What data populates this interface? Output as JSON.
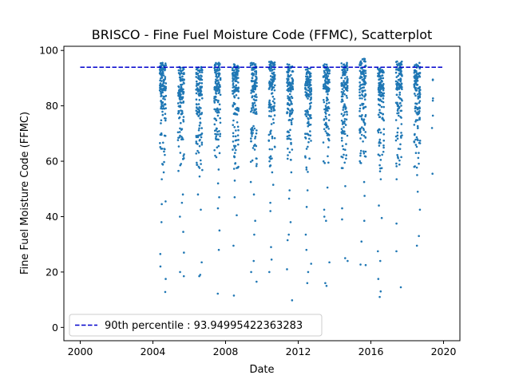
{
  "chart_data": {
    "type": "scatter",
    "title": "BRISCO - Fine Fuel Moisture Code (FFMC), Scatterplot",
    "xlabel": "Date",
    "ylabel": "Fine Fuel Moisture Code (FFMC)",
    "xlim": [
      1999.1,
      2020.9
    ],
    "ylim": [
      -4.8,
      101.5
    ],
    "xticks": [
      2000,
      2004,
      2008,
      2012,
      2016,
      2020
    ],
    "yticks": [
      0,
      20,
      40,
      60,
      80,
      100
    ],
    "grid": false,
    "legend": {
      "position": "lower-left",
      "entries": [
        {
          "label": "90th percentile : 93.94995422363283",
          "style": "dashed-line",
          "color": "#0000cc"
        }
      ]
    },
    "reference_line": {
      "y": 93.94995422363283,
      "x_range": [
        2000,
        2020
      ],
      "style": "dashed",
      "color": "#0000cc"
    },
    "series": [
      {
        "name": "FFMC",
        "color": "#1f77b4",
        "seasons": [
          {
            "start": 2004.38,
            "end": 2004.72,
            "max": 95.5,
            "low": [
              12.8,
              17.5,
              22.0,
              26.5,
              38.0,
              44.5,
              45.5,
              53.5,
              56.0,
              63.5
            ]
          },
          {
            "start": 2005.38,
            "end": 2005.72,
            "max": 94.0,
            "low": [
              18.5,
              20.0,
              27.0,
              34.5,
              40.0,
              45.0,
              48.0,
              56.5,
              62.5
            ]
          },
          {
            "start": 2006.38,
            "end": 2006.72,
            "max": 94.0,
            "low": [
              18.5,
              19.0,
              23.5,
              42.5,
              48.0,
              54.5,
              59.0,
              66.5
            ]
          },
          {
            "start": 2007.38,
            "end": 2007.72,
            "max": 95.5,
            "low": [
              12.2,
              28.0,
              35.0,
              43.0,
              47.0,
              52.0,
              57.0,
              62.0
            ]
          },
          {
            "start": 2008.38,
            "end": 2008.72,
            "max": 95.0,
            "low": [
              11.5,
              29.5,
              40.5,
              47.0,
              53.0,
              58.0,
              63.0
            ]
          },
          {
            "start": 2009.38,
            "end": 2009.72,
            "max": 95.5,
            "low": [
              16.5,
              20.0,
              24.0,
              33.5,
              38.5,
              48.0,
              52.5,
              61.0
            ]
          },
          {
            "start": 2010.38,
            "end": 2010.72,
            "max": 96.0,
            "low": [
              20.0,
              24.5,
              29.0,
              42.0,
              45.0,
              51.5,
              56.0,
              61.0
            ]
          },
          {
            "start": 2011.38,
            "end": 2011.72,
            "max": 95.0,
            "low": [
              9.8,
              21.0,
              31.5,
              33.5,
              38.0,
              46.5,
              49.5,
              56.0,
              60.5
            ]
          },
          {
            "start": 2012.38,
            "end": 2012.72,
            "max": 93.5,
            "low": [
              16.0,
              20.0,
              23.0,
              28.0,
              33.5,
              43.5,
              49.5,
              57.0,
              64.5
            ]
          },
          {
            "start": 2013.38,
            "end": 2013.72,
            "max": 95.0,
            "low": [
              15.0,
              16.0,
              23.5,
              38.5,
              40.0,
              42.5,
              50.5,
              59.5,
              67.5
            ]
          },
          {
            "start": 2014.38,
            "end": 2014.72,
            "max": 95.5,
            "low": [
              24.0,
              25.0,
              39.0,
              43.0,
              51.0,
              59.5,
              65.5
            ]
          },
          {
            "start": 2015.38,
            "end": 2015.72,
            "max": 97.0,
            "low": [
              22.5,
              22.7,
              31.0,
              38.5,
              47.5,
              52.5,
              60.0,
              68.5
            ]
          },
          {
            "start": 2016.38,
            "end": 2016.72,
            "max": 93.5,
            "low": [
              11.0,
              13.0,
              17.5,
              24.0,
              27.5,
              39.5,
              44.0,
              53.5,
              60.5
            ]
          },
          {
            "start": 2017.38,
            "end": 2017.72,
            "max": 96.0,
            "low": [
              14.5,
              27.5,
              37.5,
              53.5,
              61.5,
              67.5
            ]
          },
          {
            "start": 2018.38,
            "end": 2018.72,
            "max": 95.5,
            "low": [
              29.5,
              33.0,
              42.5,
              49.0,
              55.0,
              63.0,
              72.0
            ]
          },
          {
            "start": 2019.35,
            "end": 2019.42,
            "max": 89.5,
            "low": [
              72.0
            ],
            "count": 5
          }
        ]
      }
    ]
  }
}
